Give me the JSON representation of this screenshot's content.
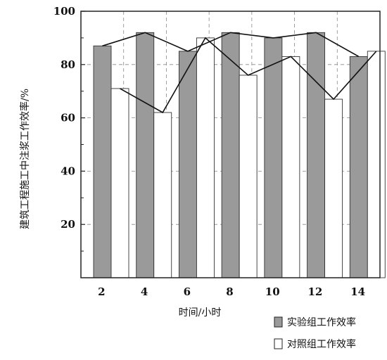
{
  "chart_data": {
    "type": "bar",
    "xlabel": "时间/小时",
    "ylabel": "建筑工程施工中注浆工作效率/%",
    "categories": [
      "2",
      "4",
      "6",
      "8",
      "10",
      "12",
      "14"
    ],
    "ylim": [
      0,
      100
    ],
    "yticks": [
      "20",
      "40",
      "60",
      "80",
      "100"
    ],
    "grid": true,
    "legend_position": "bottom-right",
    "series": [
      {
        "name": "实验组工作效率",
        "values": [
          87,
          92,
          85,
          92,
          90,
          92,
          83
        ],
        "color": "#9a9a9a",
        "trend_line": true
      },
      {
        "name": "对照组工作效率",
        "values": [
          71,
          62,
          90,
          76,
          83,
          67,
          85
        ],
        "color": "#ffffff",
        "trend_line": true
      }
    ]
  }
}
